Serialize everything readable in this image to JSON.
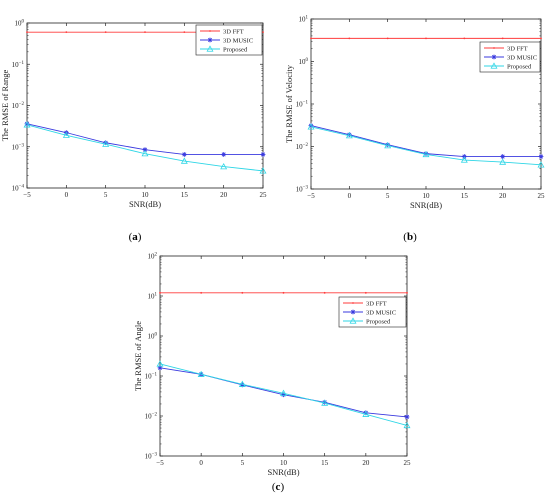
{
  "chart_data": [
    {
      "id": "a",
      "type": "line",
      "panel_label": "a",
      "xlabel": "SNR(dB)",
      "ylabel": "The RMSE of Range",
      "x": [
        -5,
        0,
        5,
        10,
        15,
        20,
        25
      ],
      "xticks": [
        "−5",
        "0",
        "5",
        "10",
        "15",
        "20",
        "25"
      ],
      "xlim": [
        -5,
        25
      ],
      "yscale": "log",
      "ylim_exp": [
        -4,
        0
      ],
      "legend_position": "top-right",
      "grid": false,
      "series": [
        {
          "name": "3D FFT",
          "color": "#ff3b3b",
          "marker": "dot",
          "values": [
            0.6,
            0.6,
            0.6,
            0.6,
            0.6,
            0.6,
            0.6
          ]
        },
        {
          "name": "3D MUSIC",
          "color": "#3a3adf",
          "marker": "star",
          "values": [
            0.0036,
            0.0022,
            0.00125,
            0.00085,
            0.00065,
            0.00065,
            0.00065
          ]
        },
        {
          "name": "Proposed",
          "color": "#2fd6e6",
          "marker": "triangle",
          "values": [
            0.0034,
            0.0019,
            0.00115,
            0.00068,
            0.00045,
            0.00033,
            0.00026
          ]
        }
      ]
    },
    {
      "id": "b",
      "type": "line",
      "panel_label": "b",
      "xlabel": "SNR(dB)",
      "ylabel": "The RMSE of Velocity",
      "x": [
        -5,
        0,
        5,
        10,
        15,
        20,
        25
      ],
      "xticks": [
        "−5",
        "0",
        "5",
        "10",
        "15",
        "20",
        "25"
      ],
      "xlim": [
        -5,
        25
      ],
      "yscale": "log",
      "ylim_exp": [
        -3,
        1
      ],
      "legend_position": "top-right",
      "grid": false,
      "series": [
        {
          "name": "3D FFT",
          "color": "#ff3b3b",
          "marker": "dot",
          "values": [
            3.5,
            3.5,
            3.5,
            3.5,
            3.5,
            3.5,
            3.5
          ]
        },
        {
          "name": "3D MUSIC",
          "color": "#3a3adf",
          "marker": "star",
          "values": [
            0.031,
            0.019,
            0.011,
            0.0068,
            0.0058,
            0.0058,
            0.0058
          ]
        },
        {
          "name": "Proposed",
          "color": "#2fd6e6",
          "marker": "triangle",
          "values": [
            0.029,
            0.018,
            0.0105,
            0.0065,
            0.0048,
            0.0043,
            0.0037
          ]
        }
      ]
    },
    {
      "id": "c",
      "type": "line",
      "panel_label": "c",
      "xlabel": "SNR(dB)",
      "ylabel": "The RMSE of Angle",
      "x": [
        -5,
        0,
        5,
        10,
        15,
        20,
        25
      ],
      "xticks": [
        "−5",
        "0",
        "5",
        "10",
        "15",
        "20",
        "25"
      ],
      "xlim": [
        -5,
        25
      ],
      "yscale": "log",
      "ylim_exp": [
        -3,
        2
      ],
      "legend_position": "top-right",
      "grid": false,
      "series": [
        {
          "name": "3D FFT",
          "color": "#ff3b3b",
          "marker": "dot",
          "values": [
            12,
            12,
            12,
            12,
            12,
            12,
            12
          ]
        },
        {
          "name": "3D MUSIC",
          "color": "#3a3adf",
          "marker": "star",
          "values": [
            0.16,
            0.11,
            0.06,
            0.034,
            0.022,
            0.012,
            0.0095
          ]
        },
        {
          "name": "Proposed",
          "color": "#2fd6e6",
          "marker": "triangle",
          "values": [
            0.2,
            0.11,
            0.062,
            0.037,
            0.021,
            0.011,
            0.0058
          ]
        }
      ]
    }
  ]
}
